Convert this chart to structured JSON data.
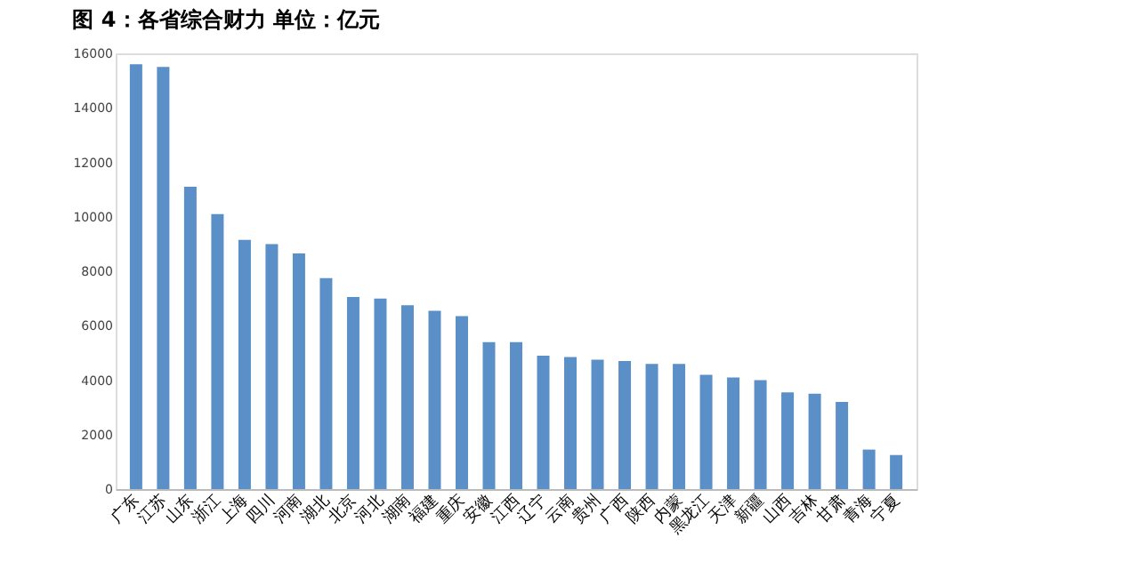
{
  "chart_data": {
    "type": "bar",
    "title": "图 4：各省综合财力   单位：亿元",
    "categories": [
      "广东",
      "江苏",
      "山东",
      "浙江",
      "上海",
      "四川",
      "河南",
      "湖北",
      "北京",
      "河北",
      "湖南",
      "福建",
      "重庆",
      "安徽",
      "江西",
      "辽宁",
      "云南",
      "贵州",
      "广西",
      "陕西",
      "内蒙",
      "黑龙江",
      "天津",
      "新疆",
      "山西",
      "吉林",
      "甘肃",
      "青海",
      "宁夏"
    ],
    "values": [
      15600,
      15500,
      11100,
      10100,
      9150,
      9000,
      8650,
      7750,
      7050,
      7000,
      6750,
      6550,
      6350,
      5400,
      5400,
      4900,
      4850,
      4750,
      4700,
      4600,
      4600,
      4200,
      4100,
      4000,
      3550,
      3500,
      3200,
      1450,
      1250
    ],
    "color": "#5b8fc7",
    "ylim": [
      0,
      16000
    ],
    "yticks": [
      0,
      2000,
      4000,
      6000,
      8000,
      10000,
      12000,
      14000,
      16000
    ],
    "grid": false
  }
}
